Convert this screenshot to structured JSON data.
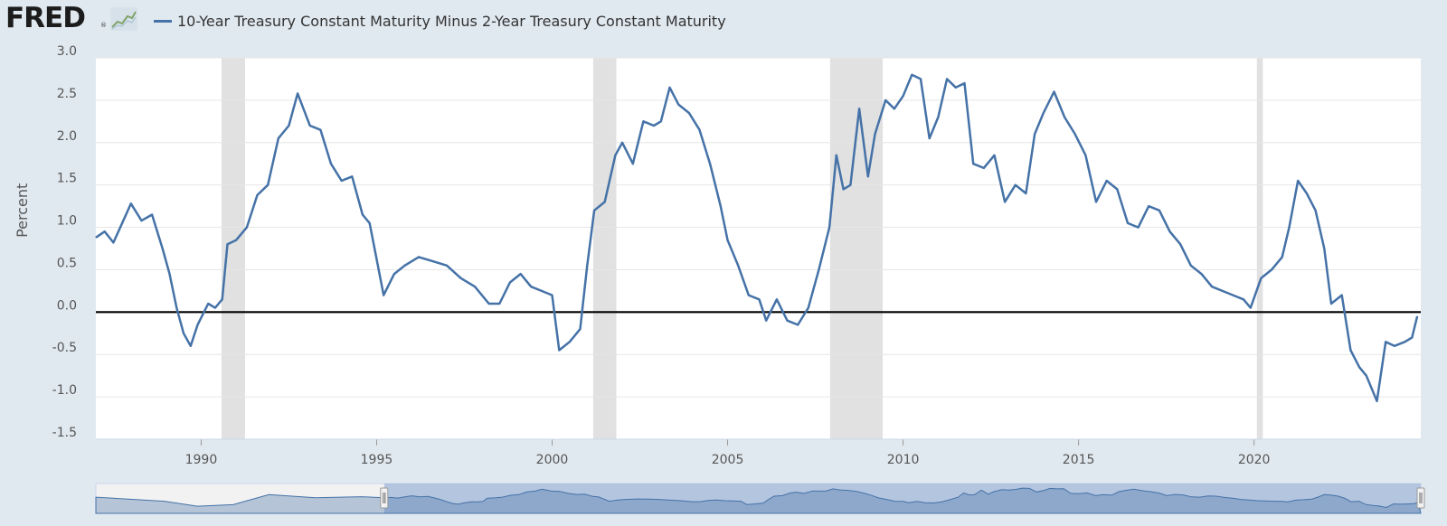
{
  "header": {
    "logo": "FRED",
    "logo_reg": "®",
    "series_label": "10-Year Treasury Constant Maturity Minus 2-Year Treasury Constant Maturity"
  },
  "colors": {
    "series": "#4572a7",
    "recession": "#e1e1e1",
    "zero_line": "#000000",
    "background": "#e1e9f0",
    "plot": "#ffffff"
  },
  "chart_data": {
    "type": "line",
    "title": "",
    "xlabel": "",
    "ylabel": "Percent",
    "xlim": [
      1987.0,
      2024.75
    ],
    "ylim": [
      -1.5,
      3.0
    ],
    "yticks": [
      3.0,
      2.5,
      2.0,
      1.5,
      1.0,
      0.5,
      0.0,
      -0.5,
      -1.0,
      -1.5
    ],
    "ytick_labels": [
      "3.0",
      "2.5",
      "2.0",
      "1.5",
      "1.0",
      "0.5",
      "0.0",
      "-0.5",
      "-1.0",
      "-1.5"
    ],
    "xticks": [
      1990,
      1995,
      2000,
      2005,
      2010,
      2015,
      2020
    ],
    "xtick_labels": [
      "1990",
      "1995",
      "2000",
      "2005",
      "2010",
      "2015",
      "2020"
    ],
    "grid": "horizontal",
    "reference_line": 0.0,
    "recessions": [
      [
        1990.58,
        1991.25
      ],
      [
        2001.17,
        2001.83
      ],
      [
        2007.92,
        2009.42
      ],
      [
        2020.08,
        2020.25
      ]
    ],
    "series": [
      {
        "name": "10-Year Treasury Constant Maturity Minus 2-Year Treasury Constant Maturity",
        "x": [
          1987.0,
          1987.25,
          1987.5,
          1987.75,
          1988.0,
          1988.3,
          1988.6,
          1988.9,
          1989.1,
          1989.3,
          1989.5,
          1989.7,
          1989.9,
          1990.2,
          1990.4,
          1990.6,
          1990.75,
          1991.0,
          1991.3,
          1991.6,
          1991.9,
          1992.2,
          1992.5,
          1992.75,
          1993.1,
          1993.4,
          1993.7,
          1994.0,
          1994.3,
          1994.6,
          1994.8,
          1995.2,
          1995.5,
          1995.8,
          1996.2,
          1996.6,
          1997.0,
          1997.4,
          1997.8,
          1998.2,
          1998.5,
          1998.8,
          1999.1,
          1999.4,
          1999.7,
          2000.0,
          2000.2,
          2000.5,
          2000.8,
          2001.0,
          2001.2,
          2001.5,
          2001.8,
          2002.0,
          2002.3,
          2002.6,
          2002.9,
          2003.1,
          2003.35,
          2003.6,
          2003.9,
          2004.2,
          2004.5,
          2004.8,
          2005.0,
          2005.3,
          2005.6,
          2005.9,
          2006.1,
          2006.4,
          2006.7,
          2007.0,
          2007.3,
          2007.6,
          2007.9,
          2008.1,
          2008.3,
          2008.5,
          2008.75,
          2009.0,
          2009.2,
          2009.5,
          2009.75,
          2010.0,
          2010.25,
          2010.5,
          2010.75,
          2011.0,
          2011.25,
          2011.5,
          2011.75,
          2012.0,
          2012.3,
          2012.6,
          2012.9,
          2013.2,
          2013.5,
          2013.75,
          2014.0,
          2014.3,
          2014.6,
          2014.9,
          2015.2,
          2015.5,
          2015.8,
          2016.1,
          2016.4,
          2016.7,
          2017.0,
          2017.3,
          2017.6,
          2017.9,
          2018.2,
          2018.5,
          2018.8,
          2019.1,
          2019.4,
          2019.7,
          2019.9,
          2020.2,
          2020.5,
          2020.8,
          2021.0,
          2021.25,
          2021.5,
          2021.75,
          2022.0,
          2022.2,
          2022.5,
          2022.75,
          2023.0,
          2023.2,
          2023.5,
          2023.75,
          2024.0,
          2024.3,
          2024.5,
          2024.65
        ],
        "values": [
          0.88,
          0.95,
          0.82,
          1.05,
          1.28,
          1.08,
          1.15,
          0.75,
          0.45,
          0.05,
          -0.25,
          -0.4,
          -0.15,
          0.1,
          0.05,
          0.15,
          0.8,
          0.85,
          1.0,
          1.38,
          1.5,
          2.05,
          2.2,
          2.58,
          2.2,
          2.15,
          1.75,
          1.55,
          1.6,
          1.15,
          1.05,
          0.2,
          0.45,
          0.55,
          0.65,
          0.6,
          0.55,
          0.4,
          0.3,
          0.1,
          0.1,
          0.35,
          0.45,
          0.3,
          0.25,
          0.2,
          -0.45,
          -0.35,
          -0.2,
          0.55,
          1.2,
          1.3,
          1.85,
          2.0,
          1.75,
          2.25,
          2.2,
          2.25,
          2.65,
          2.45,
          2.35,
          2.15,
          1.75,
          1.25,
          0.85,
          0.55,
          0.2,
          0.15,
          -0.1,
          0.15,
          -0.1,
          -0.15,
          0.05,
          0.5,
          1.0,
          1.85,
          1.45,
          1.5,
          2.4,
          1.6,
          2.1,
          2.5,
          2.4,
          2.55,
          2.8,
          2.75,
          2.05,
          2.3,
          2.75,
          2.65,
          2.7,
          1.75,
          1.7,
          1.85,
          1.3,
          1.5,
          1.4,
          2.1,
          2.35,
          2.6,
          2.3,
          2.1,
          1.85,
          1.3,
          1.55,
          1.45,
          1.05,
          1.0,
          1.25,
          1.2,
          0.95,
          0.8,
          0.55,
          0.45,
          0.3,
          0.25,
          0.2,
          0.15,
          0.05,
          0.4,
          0.5,
          0.65,
          1.0,
          1.55,
          1.4,
          1.2,
          0.75,
          0.1,
          0.2,
          -0.45,
          -0.65,
          -0.75,
          -1.05,
          -0.35,
          -0.4,
          -0.35,
          -0.3,
          -0.05
        ]
      }
    ]
  }
}
